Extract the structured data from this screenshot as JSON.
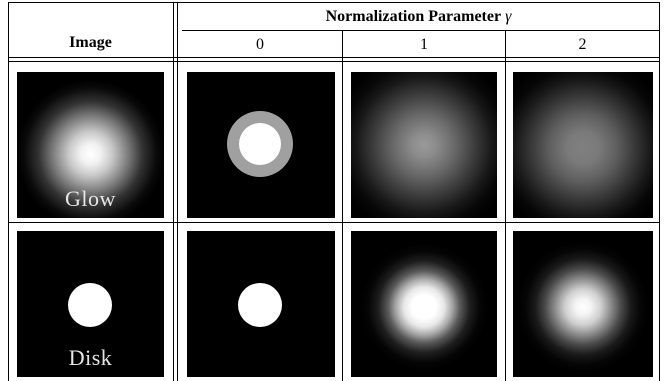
{
  "table": {
    "col0_header": "Image",
    "group_header": "Normalization Parameter",
    "group_symbol": "γ",
    "params": [
      "0",
      "1",
      "2"
    ],
    "rows": [
      {
        "label": "Glow",
        "images": [
          "glow-original",
          "glow-gamma-0-ring",
          "glow-gamma-1-blur",
          "glow-gamma-2-blur"
        ]
      },
      {
        "label": "Disk",
        "images": [
          "disk-original",
          "disk-gamma-0",
          "disk-gamma-1-blur",
          "disk-gamma-2-blur"
        ]
      }
    ]
  }
}
